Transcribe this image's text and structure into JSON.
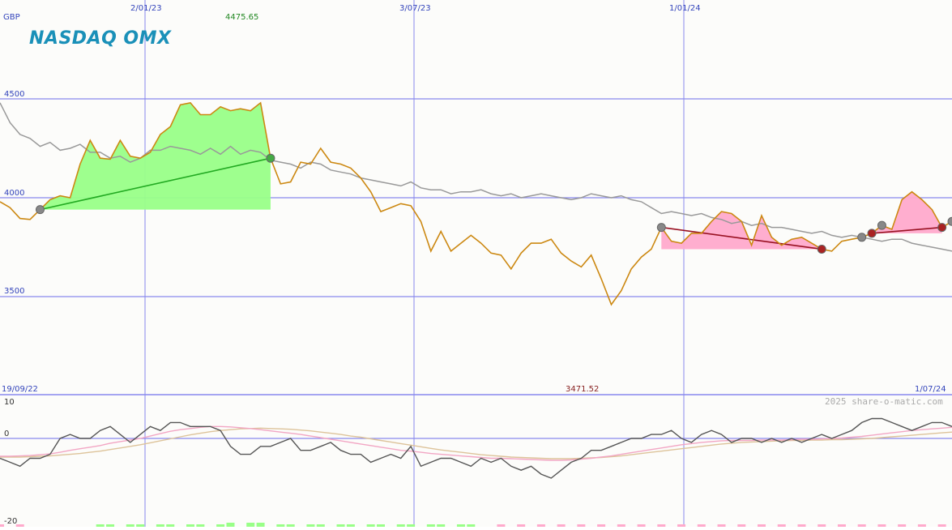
{
  "chart_data": [
    {
      "type": "line",
      "title": "",
      "currency_label": "GBP",
      "brand": "NASDAQ OMX",
      "credit": "2025 share-o-matic.com",
      "start_date_label": "19/09/22",
      "end_date_label": "1/07/24",
      "x_tick_labels": [
        "2/01/23",
        "3/07/23",
        "1/01/24"
      ],
      "y_tick_labels": [
        "4500",
        "4000",
        "3500"
      ],
      "ylim": [
        3000,
        5000
      ],
      "max_label": "4475.65",
      "min_label": "3471.52",
      "grid": true,
      "colors": {
        "price": "#cc8811",
        "index": "#999999",
        "up_fill": "#99ff88",
        "down_fill": "#ffaacc",
        "up_line": "#22aa22",
        "down_line": "#991122",
        "grid": "#8888ee"
      },
      "series": [
        {
          "values": [
            3980,
            3950,
            3895,
            3890,
            3940,
            3990,
            4010,
            4000,
            4170,
            4290,
            4200,
            4195,
            4290,
            4210,
            4200,
            4230,
            4320,
            4360,
            4470,
            4480,
            4420,
            4420,
            4460,
            4440,
            4450,
            4440,
            4480,
            4200,
            4070,
            4080,
            4180,
            4170,
            4250,
            4180,
            4170,
            4150,
            4100,
            4030,
            3930,
            3950,
            3970,
            3960,
            3880,
            3730,
            3830,
            3730,
            3770,
            3810,
            3770,
            3720,
            3710,
            3640,
            3720,
            3770,
            3770,
            3790,
            3720,
            3680,
            3650,
            3710,
            3590,
            3460,
            3530,
            3640,
            3700,
            3740,
            3850,
            3780,
            3770,
            3820,
            3820,
            3880,
            3930,
            3920,
            3880,
            3760,
            3910,
            3800,
            3760,
            3790,
            3800,
            3770,
            3740,
            3730,
            3780,
            3790,
            3800,
            3820,
            3860,
            3840,
            3990,
            4030,
            3990,
            3940,
            3850,
            3880
          ]
        },
        {
          "values": [
            4480,
            4380,
            4320,
            4300,
            4260,
            4280,
            4240,
            4250,
            4270,
            4230,
            4230,
            4200,
            4210,
            4180,
            4200,
            4240,
            4240,
            4260,
            4250,
            4240,
            4220,
            4250,
            4220,
            4260,
            4220,
            4240,
            4230,
            4190,
            4180,
            4170,
            4150,
            4180,
            4170,
            4140,
            4130,
            4120,
            4100,
            4090,
            4080,
            4070,
            4060,
            4080,
            4050,
            4040,
            4040,
            4020,
            4030,
            4030,
            4040,
            4020,
            4010,
            4020,
            4000,
            4010,
            4020,
            4010,
            4000,
            3990,
            4000,
            4020,
            4010,
            4000,
            4010,
            3990,
            3980,
            3950,
            3920,
            3930,
            3920,
            3910,
            3920,
            3900,
            3890,
            3870,
            3880,
            3860,
            3870,
            3850,
            3850,
            3840,
            3830,
            3820,
            3830,
            3810,
            3800,
            3810,
            3800,
            3790,
            3780,
            3790,
            3790,
            3770,
            3760,
            3750,
            3740,
            3730
          ]
        }
      ]
    },
    {
      "type": "line",
      "title": "",
      "y_tick_labels": [
        "10",
        "0",
        "-20"
      ],
      "ylim": [
        -20,
        10
      ],
      "grid": true,
      "series": [
        {
          "values": [
            -5,
            -6,
            -7,
            -5,
            -5,
            -4,
            0,
            1,
            0,
            0,
            2,
            3,
            1,
            -1,
            1,
            3,
            2,
            4,
            4,
            3,
            3,
            3,
            2,
            -2,
            -4,
            -4,
            -2,
            -2,
            -1,
            0,
            -3,
            -3,
            -2,
            -1,
            -3,
            -4,
            -4,
            -6,
            -5,
            -4,
            -5,
            -2,
            -7,
            -6,
            -5,
            -5,
            -6,
            -7,
            -5,
            -6,
            -5,
            -7,
            -8,
            -7,
            -9,
            -10,
            -8,
            -6,
            -5,
            -3,
            -3,
            -2,
            -1,
            0,
            0,
            1,
            1,
            2,
            0,
            -1,
            1,
            2,
            1,
            -1,
            0,
            0,
            -1,
            0,
            -1,
            0,
            -1,
            0,
            1,
            0,
            1,
            2,
            4,
            5,
            5,
            4,
            3,
            2,
            3,
            4,
            4,
            3
          ]
        },
        {
          "values": [
            -4.5,
            -4.5,
            -4.4,
            -4.3,
            -4.1,
            -3.9,
            -3.5,
            -3,
            -2.6,
            -2.2,
            -1.8,
            -1.2,
            -0.8,
            -0.4,
            0,
            0.6,
            1.2,
            1.8,
            2.2,
            2.5,
            2.8,
            3,
            3,
            2.9,
            2.7,
            2.5,
            2.2,
            1.9,
            1.6,
            1.3,
            1,
            0.6,
            0.2,
            -0.2,
            -0.6,
            -1,
            -1.4,
            -1.8,
            -2.2,
            -2.6,
            -3,
            -3.2,
            -3.5,
            -3.8,
            -4,
            -4.2,
            -4.4,
            -4.6,
            -4.8,
            -5,
            -5,
            -5.1,
            -5.2,
            -5.3,
            -5.4,
            -5.5,
            -5.5,
            -5.4,
            -5.2,
            -5,
            -4.7,
            -4.4,
            -4,
            -3.6,
            -3.2,
            -2.8,
            -2.4,
            -2,
            -1.6,
            -1.3,
            -1,
            -0.8,
            -0.6,
            -0.5,
            -0.5,
            -0.5,
            -0.4,
            -0.4,
            -0.4,
            -0.3,
            -0.2,
            -0.2,
            -0.1,
            0,
            0.1,
            0.3,
            0.5,
            0.8,
            1.1,
            1.4,
            1.7,
            2,
            2.2,
            2.4,
            2.6,
            2.8
          ]
        },
        {
          "values": [
            -4.7,
            -4.7,
            -4.7,
            -4.6,
            -4.5,
            -4.4,
            -4.2,
            -4,
            -3.8,
            -3.5,
            -3.2,
            -2.8,
            -2.4,
            -2,
            -1.6,
            -1.1,
            -0.6,
            -0.1,
            0.4,
            0.9,
            1.3,
            1.7,
            2,
            2.2,
            2.4,
            2.5,
            2.6,
            2.5,
            2.4,
            2.3,
            2.1,
            1.9,
            1.6,
            1.3,
            1,
            0.6,
            0.3,
            -0.1,
            -0.5,
            -0.9,
            -1.3,
            -1.7,
            -2.1,
            -2.5,
            -2.9,
            -3.2,
            -3.5,
            -3.8,
            -4.1,
            -4.3,
            -4.5,
            -4.7,
            -4.8,
            -4.9,
            -5,
            -5.1,
            -5.1,
            -5.1,
            -5,
            -4.9,
            -4.8,
            -4.6,
            -4.4,
            -4.1,
            -3.8,
            -3.5,
            -3.2,
            -2.9,
            -2.6,
            -2.3,
            -2,
            -1.7,
            -1.4,
            -1.2,
            -1,
            -0.9,
            -0.8,
            -0.7,
            -0.6,
            -0.5,
            -0.5,
            -0.4,
            -0.4,
            -0.3,
            -0.3,
            -0.2,
            -0.1,
            0,
            0.2,
            0.4,
            0.6,
            0.8,
            1,
            1.2,
            1.4,
            1.6
          ]
        }
      ]
    }
  ]
}
